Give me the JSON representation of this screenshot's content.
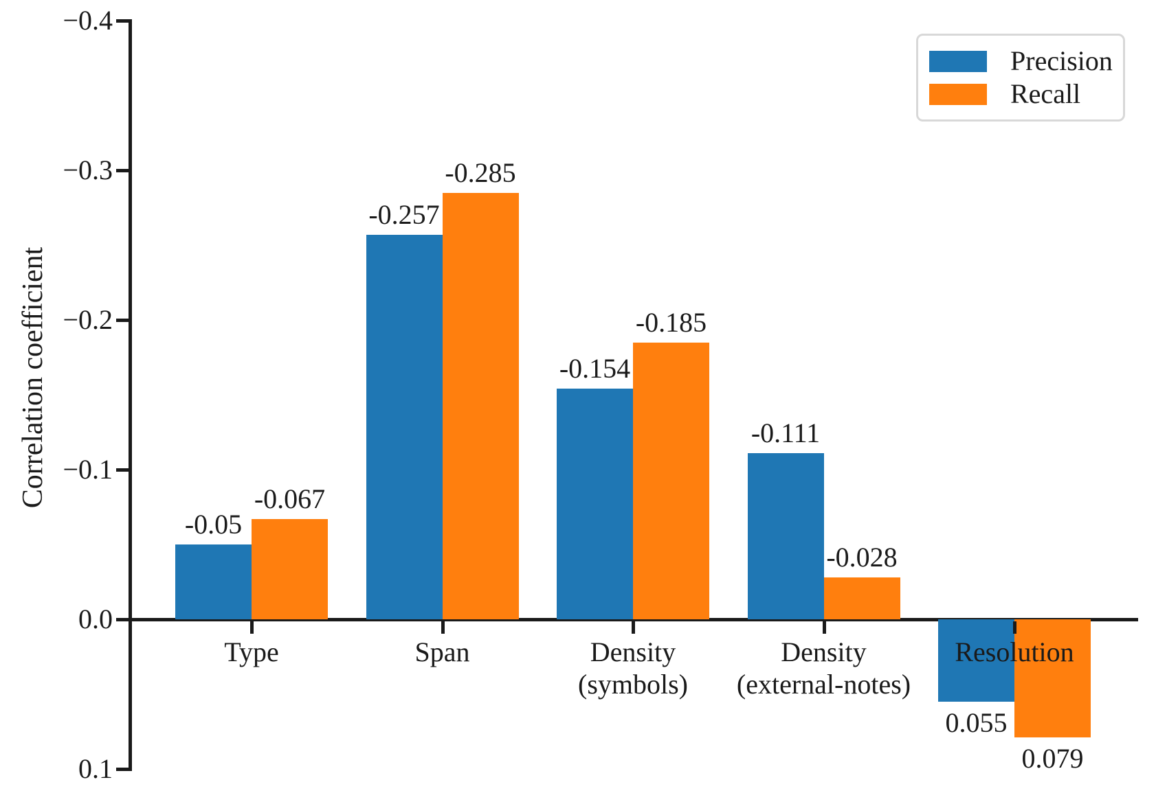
{
  "chart_data": {
    "type": "bar",
    "title": "",
    "xlabel": "",
    "ylabel": "Correlation coefficient",
    "categories": [
      "Type",
      "Span",
      "Density (symbols)",
      "Density (external-notes)",
      "Resolution"
    ],
    "category_label_lines": [
      [
        "Type"
      ],
      [
        "Span"
      ],
      [
        "Density",
        "(symbols)"
      ],
      [
        "Density",
        "(external-notes)"
      ],
      [
        "Resolution"
      ]
    ],
    "series": [
      {
        "name": "Precision",
        "color": "#1f77b4",
        "values": [
          -0.05,
          -0.257,
          -0.154,
          -0.111,
          0.055
        ],
        "value_labels": [
          "-0.05",
          "-0.257",
          "-0.154",
          "-0.111",
          "0.055"
        ]
      },
      {
        "name": "Recall",
        "color": "#ff7f0e",
        "values": [
          -0.067,
          -0.285,
          -0.185,
          -0.028,
          0.079
        ],
        "value_labels": [
          "-0.067",
          "-0.285",
          "-0.185",
          "-0.028",
          "0.079"
        ]
      }
    ],
    "y_axis": {
      "label": "Correlation coefficient",
      "range": [
        -0.4,
        0.1
      ],
      "inverted": true,
      "ticks": [
        {
          "value": -0.4,
          "label": "−0.4"
        },
        {
          "value": -0.3,
          "label": "−0.3"
        },
        {
          "value": -0.2,
          "label": "−0.2"
        },
        {
          "value": -0.1,
          "label": "−0.1"
        },
        {
          "value": 0.0,
          "label": "0.0"
        },
        {
          "value": 0.1,
          "label": "0.1"
        }
      ]
    },
    "legend": {
      "position": "upper right",
      "items": [
        {
          "label": "Precision",
          "color": "#1f77b4"
        },
        {
          "label": "Recall",
          "color": "#ff7f0e"
        }
      ]
    },
    "grid": false,
    "axis_color": "#1a1a1a"
  }
}
